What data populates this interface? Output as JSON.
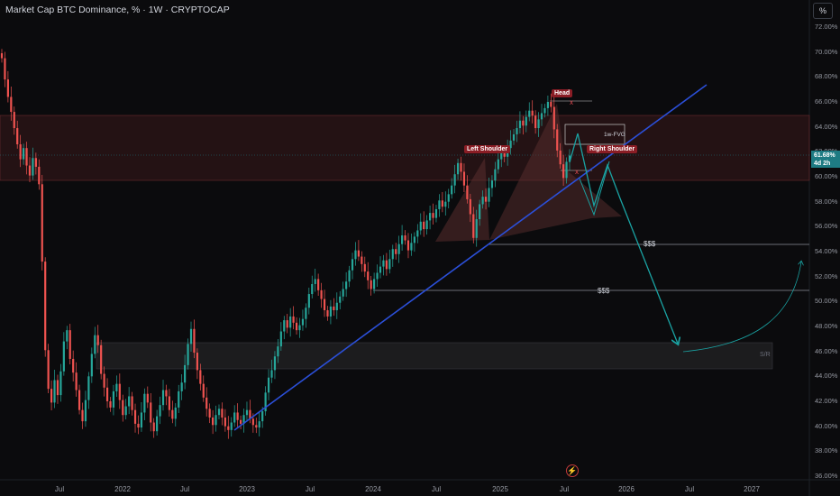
{
  "header": {
    "title": "Market Cap BTC Dominance, % · 1W · CRYPTOCAP",
    "scale_button": "%"
  },
  "price_badge": {
    "value": "61.68%",
    "countdown": "4d 2h"
  },
  "annotations": {
    "head": "Head",
    "left_shoulder": "Left Shoulder",
    "right_shoulder": "Right Shoulder",
    "fvg": "1w-FVG",
    "liquidity_upper": "$$$",
    "liquidity_lower": "$$$",
    "sr": "S/R",
    "x_top": "x",
    "x_bottom": "x"
  },
  "flash_icon": "lightning-icon",
  "colors": {
    "background": "#0b0b0d",
    "bull": "#26a69a",
    "bear": "#ef5350",
    "trendline": "#2b4fd8",
    "projection": "#1aa3a3",
    "zone": "#3a1a1c"
  },
  "chart_data": {
    "type": "candlestick",
    "title": "Market Cap BTC Dominance, % · 1W · CRYPTOCAP",
    "ylabel": "%",
    "ylim": [
      35.5,
      73
    ],
    "y_ticks": [
      "72.00%",
      "70.00%",
      "68.00%",
      "66.00%",
      "64.00%",
      "62.00%",
      "60.00%",
      "58.00%",
      "56.00%",
      "54.00%",
      "52.00%",
      "50.00%",
      "48.00%",
      "46.00%",
      "44.00%",
      "42.00%",
      "40.00%",
      "38.00%",
      "36.00%"
    ],
    "x_ticks": [
      "Jul",
      "2022",
      "Jul",
      "2023",
      "Jul",
      "2024",
      "Jul",
      "2025",
      "Jul",
      "2026",
      "Jul",
      "2027"
    ],
    "current_value": 61.68,
    "series": [
      {
        "closes": [
          69.5,
          67.8,
          66.4,
          65.2,
          63.9,
          62.6,
          61.4,
          62.3,
          60.9,
          60.1,
          61.5,
          60.8,
          59.4,
          53.2,
          46.1,
          43.0,
          41.9,
          43.7,
          42.5,
          44.4,
          46.8,
          47.7,
          45.4,
          44.3,
          42.9,
          41.3,
          40.4,
          42.1,
          44.0,
          45.8,
          47.3,
          46.5,
          44.2,
          43.1,
          42.0,
          41.5,
          42.8,
          43.4,
          42.1,
          40.9,
          41.6,
          42.4,
          41.3,
          40.2,
          39.9,
          41.1,
          42.6,
          41.9,
          40.3,
          39.6,
          40.8,
          41.7,
          42.9,
          42.4,
          41.3,
          40.6,
          41.5,
          42.8,
          43.5,
          44.9,
          46.6,
          47.8,
          45.9,
          44.5,
          43.4,
          42.3,
          41.4,
          40.7,
          40.1,
          40.9,
          41.4,
          40.7,
          40.0,
          39.7,
          40.3,
          41.1,
          40.5,
          40.2,
          40.9,
          41.3,
          40.6,
          40.1,
          39.9,
          40.4,
          41.2,
          42.7,
          43.9,
          44.5,
          45.6,
          46.4,
          47.6,
          48.5,
          47.9,
          48.8,
          48.3,
          47.7,
          48.1,
          48.6,
          49.5,
          50.6,
          51.4,
          51.8,
          50.9,
          50.2,
          49.3,
          48.8,
          49.6,
          49.3,
          49.9,
          50.4,
          51.0,
          51.6,
          52.5,
          53.4,
          54.1,
          53.6,
          53.0,
          52.4,
          51.7,
          51.0,
          51.8,
          52.3,
          52.8,
          53.3,
          52.6,
          53.4,
          54.2,
          53.8,
          54.6,
          55.3,
          54.9,
          54.1,
          54.7,
          55.2,
          55.7,
          56.4,
          55.8,
          56.5,
          57.1,
          56.7,
          57.4,
          58.1,
          57.6,
          58.0,
          58.6,
          59.3,
          60.2,
          61.1,
          60.4,
          59.3,
          58.2,
          57.0,
          55.1,
          56.6,
          57.8,
          58.4,
          58.0,
          59.1,
          59.7,
          60.6,
          61.4,
          62.0,
          61.6,
          62.3,
          62.9,
          63.4,
          63.9,
          64.5,
          64.1,
          64.8,
          65.3,
          64.9,
          63.9,
          64.6,
          65.1,
          65.5,
          66.0,
          65.6,
          63.8,
          62.1,
          61.0,
          59.9,
          61.2,
          61.7
        ]
      }
    ],
    "pattern": {
      "name": "Head and Shoulders",
      "head_level": 66.0,
      "neckline": [
        54.8,
        56.9
      ],
      "fvg_range": [
        62.6,
        63.9
      ],
      "resistance_zone": [
        59.6,
        64.9
      ],
      "support_zone": [
        44.6,
        46.7
      ],
      "liquidity_levels": [
        54.6,
        50.8
      ],
      "projection_target": 46.4,
      "trendline": {
        "from": 39.8,
        "to": 67.3
      }
    }
  }
}
